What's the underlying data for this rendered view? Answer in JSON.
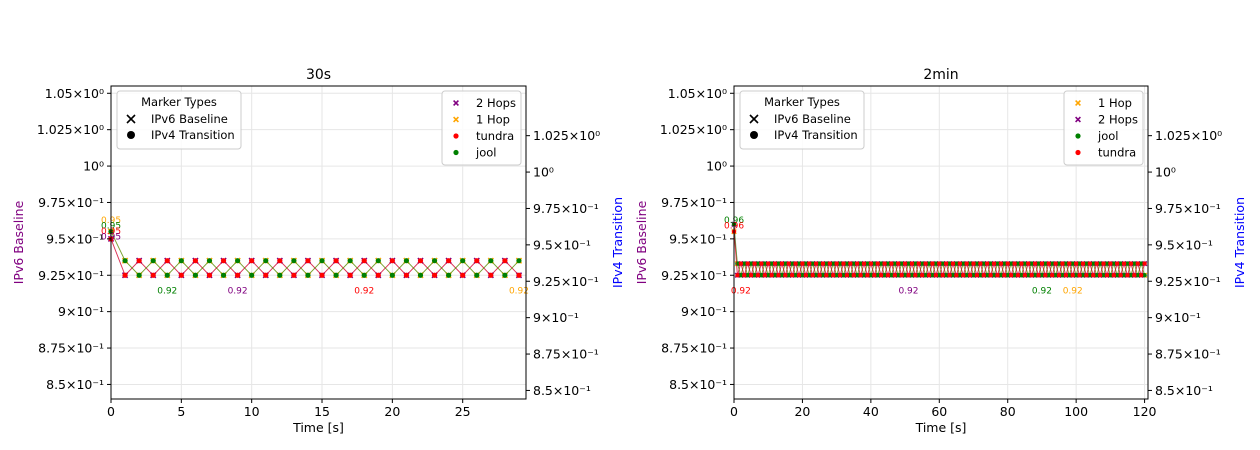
{
  "chart_data": [
    {
      "type": "line",
      "title": "30s",
      "xlabel": "Time [s]",
      "ylabel_left": "IPv6 Baseline",
      "ylabel_right": "IPv4 Transition",
      "xlim": [
        0,
        29.5
      ],
      "ylim": [
        0.84,
        1.055
      ],
      "x_ticks": [
        0,
        5,
        10,
        15,
        20,
        25
      ],
      "grid": true,
      "y_ticks_left": [
        {
          "label": "8.5×10⁻¹",
          "value": 0.85
        },
        {
          "label": "8.75×10⁻¹",
          "value": 0.875
        },
        {
          "label": "9×10⁻¹",
          "value": 0.9
        },
        {
          "label": "9.25×10⁻¹",
          "value": 0.925
        },
        {
          "label": "9.5×10⁻¹",
          "value": 0.95
        },
        {
          "label": "9.75×10⁻¹",
          "value": 0.975
        },
        {
          "label": "10⁰",
          "value": 1.0,
          "color": "#800080"
        },
        {
          "label": "1.025×10⁰",
          "value": 1.025
        },
        {
          "label": "1.05×10⁰",
          "value": 1.05
        }
      ],
      "y_ticks_right": [
        {
          "label": "8.5×10⁻¹",
          "value": 0.85
        },
        {
          "label": "8.75×10⁻¹",
          "value": 0.875
        },
        {
          "label": "9×10⁻¹",
          "value": 0.9
        },
        {
          "label": "9.25×10⁻¹",
          "value": 0.925
        },
        {
          "label": "9.5×10⁻¹",
          "value": 0.95
        },
        {
          "label": "9.75×10⁻¹",
          "value": 0.975
        },
        {
          "label": "10⁰",
          "value": 1.0,
          "color": "#0000ff"
        },
        {
          "label": "1.025×10⁰",
          "value": 1.025
        }
      ],
      "series": [
        {
          "name": "2 Hops",
          "axis": "left",
          "marker": "x",
          "color": "#800080",
          "start": 0.95,
          "high": 0.935,
          "low": 0.925,
          "phase": 0,
          "step": 1
        },
        {
          "name": "1 Hop",
          "axis": "left",
          "marker": "x",
          "color": "#ffa500",
          "start": 0.955,
          "high": 0.935,
          "low": 0.925,
          "phase": 1,
          "step": 1
        },
        {
          "name": "tundra",
          "axis": "right",
          "marker": "o",
          "color": "#ff0000",
          "start": 0.95,
          "high": 0.935,
          "low": 0.925,
          "phase": 0,
          "step": 1
        },
        {
          "name": "jool",
          "axis": "right",
          "marker": "o",
          "color": "#008000",
          "start": 0.955,
          "high": 0.935,
          "low": 0.925,
          "phase": 1,
          "step": 1
        }
      ],
      "start_labels": [
        {
          "text": "0.95",
          "color": "#ffa500"
        },
        {
          "text": "0.95",
          "color": "#008000"
        },
        {
          "text": "0.95",
          "color": "#ff0000"
        },
        {
          "text": "0.95",
          "color": "#800080"
        }
      ],
      "annotations": [
        {
          "text": "0.92",
          "x": 4,
          "y": 0.922,
          "color": "#008000"
        },
        {
          "text": "0.92",
          "x": 9,
          "y": 0.922,
          "color": "#800080"
        },
        {
          "text": "0.92",
          "x": 18,
          "y": 0.922,
          "color": "#ff0000"
        },
        {
          "text": "0.92",
          "x": 29,
          "y": 0.922,
          "color": "#ffa500"
        }
      ],
      "legend_markers_title": "Marker Types",
      "legend_markers": [
        {
          "marker": "x",
          "label": "IPv6 Baseline"
        },
        {
          "marker": "o",
          "label": "IPv4 Transition"
        }
      ],
      "legend_series": [
        {
          "marker": "x",
          "color": "#800080",
          "label": "2 Hops"
        },
        {
          "marker": "x",
          "color": "#ffa500",
          "label": "1 Hop"
        },
        {
          "marker": "o",
          "color": "#ff0000",
          "label": "tundra"
        },
        {
          "marker": "o",
          "color": "#008000",
          "label": "jool"
        }
      ]
    },
    {
      "type": "line",
      "title": "2min",
      "xlabel": "Time [s]",
      "ylabel_left": "IPv6 Baseline",
      "ylabel_right": "IPv4 Transition",
      "xlim": [
        0,
        121
      ],
      "ylim": [
        0.84,
        1.055
      ],
      "x_ticks": [
        0,
        20,
        40,
        60,
        80,
        100,
        120
      ],
      "grid": true,
      "y_ticks_left": [
        {
          "label": "8.5×10⁻¹",
          "value": 0.85
        },
        {
          "label": "8.75×10⁻¹",
          "value": 0.875
        },
        {
          "label": "9×10⁻¹",
          "value": 0.9
        },
        {
          "label": "9.25×10⁻¹",
          "value": 0.925
        },
        {
          "label": "9.5×10⁻¹",
          "value": 0.95
        },
        {
          "label": "9.75×10⁻¹",
          "value": 0.975
        },
        {
          "label": "10⁰",
          "value": 1.0,
          "color": "#800080"
        },
        {
          "label": "1.025×10⁰",
          "value": 1.025
        },
        {
          "label": "1.05×10⁰",
          "value": 1.05
        }
      ],
      "y_ticks_right": [
        {
          "label": "8.5×10⁻¹",
          "value": 0.85
        },
        {
          "label": "8.75×10⁻¹",
          "value": 0.875
        },
        {
          "label": "9×10⁻¹",
          "value": 0.9
        },
        {
          "label": "9.25×10⁻¹",
          "value": 0.925
        },
        {
          "label": "9.5×10⁻¹",
          "value": 0.95
        },
        {
          "label": "9.75×10⁻¹",
          "value": 0.975
        },
        {
          "label": "10⁰",
          "value": 1.0,
          "color": "#0000ff"
        },
        {
          "label": "1.025×10⁰",
          "value": 1.025
        }
      ],
      "series": [
        {
          "name": "1 Hop",
          "axis": "left",
          "marker": "x",
          "color": "#ffa500",
          "start": 0.955,
          "high": 0.933,
          "low": 0.925,
          "phase": 1,
          "step": 1
        },
        {
          "name": "2 Hops",
          "axis": "left",
          "marker": "x",
          "color": "#800080",
          "start": 0.96,
          "high": 0.933,
          "low": 0.925,
          "phase": 0,
          "step": 1
        },
        {
          "name": "jool",
          "axis": "right",
          "marker": "o",
          "color": "#008000",
          "start": 0.96,
          "high": 0.933,
          "low": 0.925,
          "phase": 1,
          "step": 1
        },
        {
          "name": "tundra",
          "axis": "right",
          "marker": "o",
          "color": "#ff0000",
          "start": 0.955,
          "high": 0.933,
          "low": 0.925,
          "phase": 0,
          "step": 1
        }
      ],
      "start_labels": [
        {
          "text": "0.96",
          "color": "#008000"
        },
        {
          "text": "0.96",
          "color": "#ff0000"
        }
      ],
      "annotations": [
        {
          "text": "0.92",
          "x": 2,
          "y": 0.922,
          "color": "#ff0000"
        },
        {
          "text": "0.92",
          "x": 51,
          "y": 0.922,
          "color": "#800080"
        },
        {
          "text": "0.92",
          "x": 90,
          "y": 0.922,
          "color": "#008000"
        },
        {
          "text": "0.92",
          "x": 99,
          "y": 0.922,
          "color": "#ffa500"
        }
      ],
      "legend_markers_title": "Marker Types",
      "legend_markers": [
        {
          "marker": "x",
          "label": "IPv6 Baseline"
        },
        {
          "marker": "o",
          "label": "IPv4 Transition"
        }
      ],
      "legend_series": [
        {
          "marker": "x",
          "color": "#ffa500",
          "label": "1 Hop"
        },
        {
          "marker": "x",
          "color": "#800080",
          "label": "2 Hops"
        },
        {
          "marker": "o",
          "color": "#008000",
          "label": "jool"
        },
        {
          "marker": "o",
          "color": "#ff0000",
          "label": "tundra"
        }
      ]
    }
  ]
}
